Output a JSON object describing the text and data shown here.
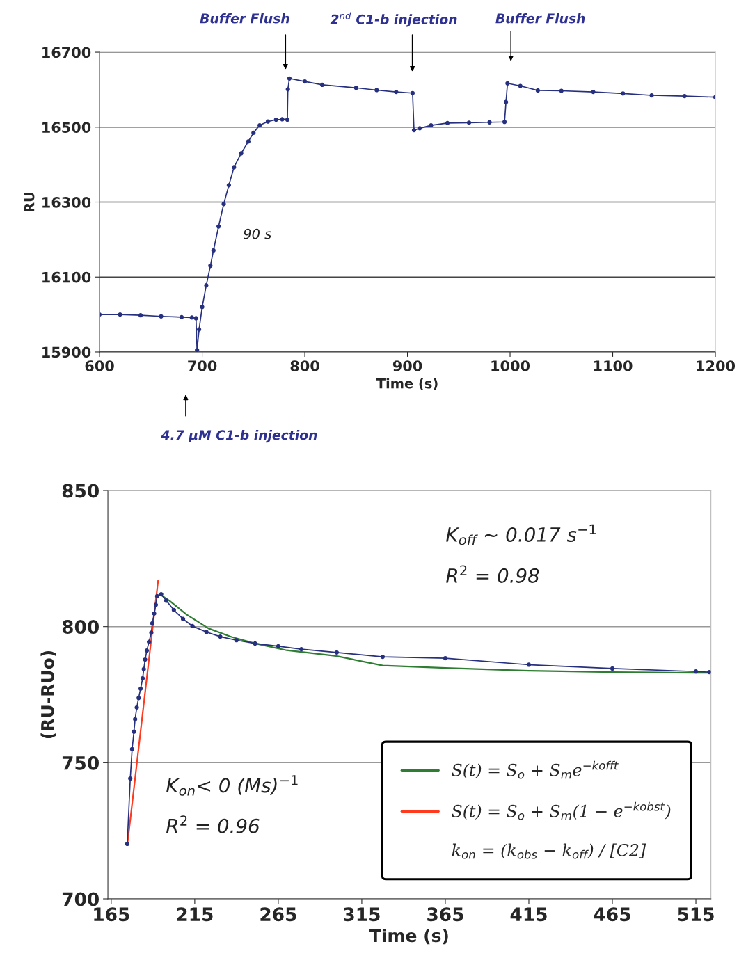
{
  "chart_data": [
    {
      "type": "line",
      "xlabel": "Time (s)",
      "ylabel": "RU",
      "xlim": [
        600,
        1200
      ],
      "xticks": [
        600,
        700,
        800,
        900,
        1000,
        1100,
        1200
      ],
      "ylim": [
        15900,
        16700
      ],
      "yticks": [
        15900,
        16100,
        16300,
        16500,
        16700
      ],
      "grid": "y",
      "marker": "circle",
      "series": [
        {
          "color": "#26307f",
          "x": [
            600,
            620,
            640,
            660,
            680,
            690,
            694,
            695,
            697,
            700,
            704,
            708,
            711,
            716,
            721,
            726,
            731,
            738,
            745,
            750,
            756,
            764,
            772,
            778,
            783,
            783.5,
            785,
            800,
            817,
            850,
            870,
            889,
            905,
            906.4,
            912,
            923,
            939,
            960,
            980,
            994.6,
            996,
            997.5,
            1010,
            1027,
            1050,
            1081,
            1110,
            1138,
            1170,
            1200
          ],
          "values": [
            16000,
            16000,
            15998,
            15995,
            15993,
            15992,
            15990,
            15905,
            15960,
            16020,
            16078,
            16130,
            16171,
            16235,
            16295,
            16345,
            16393,
            16430,
            16462,
            16485,
            16505,
            16515,
            16520,
            16521,
            16520,
            16601,
            16630,
            16622,
            16613,
            16605,
            16599,
            16594,
            16591,
            16492,
            16497,
            16505,
            16511,
            16512,
            16513,
            16514,
            16567,
            16617,
            16610,
            16598,
            16597,
            16594,
            16590,
            16585,
            16583,
            16580
          ]
        }
      ],
      "annotations": [
        "Buffer Flush",
        "2$^{nd}$ C1-b injection",
        "Buffer Flush",
        "90 s",
        "4.7 μM C1-b injection"
      ]
    },
    {
      "type": "line",
      "xlabel": "Time (s)",
      "ylabel": "(RU-RUo)",
      "xlim": [
        163,
        524
      ],
      "xticks": [
        165,
        215,
        265,
        315,
        365,
        415,
        465,
        515
      ],
      "ylim": [
        700,
        850
      ],
      "yticks": [
        700,
        750,
        800,
        850
      ],
      "grid": "y",
      "legend": "lower right",
      "series": [
        {
          "color": "#26307f",
          "marker": "circle",
          "x": [
            174.6,
            176.4,
            177.5,
            178.6,
            179.3,
            180.3,
            181.4,
            182.6,
            183.8,
            184.5,
            185.3,
            186.3,
            187.6,
            189,
            189.6,
            190.7,
            191.7,
            192.5,
            194.9,
            198,
            202.5,
            208,
            213.6,
            222,
            230.3,
            240,
            251.1,
            265,
            278.8,
            300,
            327.5,
            365,
            415,
            465,
            515,
            523
          ],
          "values": [
            720.2,
            744.2,
            755,
            761.4,
            766,
            770.3,
            773.8,
            777.2,
            781,
            784.4,
            787.9,
            791.2,
            794.4,
            797.8,
            801.2,
            804.8,
            808,
            811.2,
            811.9,
            809.5,
            806.1,
            802.8,
            800.2,
            798,
            796.3,
            795,
            793.8,
            792.8,
            791.7,
            790.5,
            788.9,
            788.4,
            786,
            784.6,
            783.5,
            783.3
          ]
        },
        {
          "name": "S(t) = S$_{o}$ + S$_{m}$e$^{−kofft}$",
          "color": "#2e7d32",
          "marker": "none",
          "x": [
            195,
            199.7,
            210,
            223.3,
            237,
            251.1,
            270,
            299.6,
            327.5,
            365,
            415,
            465,
            515,
            523
          ],
          "values": [
            811.5,
            809.6,
            804.5,
            799.3,
            796.2,
            793.8,
            791.3,
            789.2,
            785.7,
            784.8,
            783.8,
            783.3,
            783,
            783
          ]
        },
        {
          "name": "S(t) = S$_{o}$ + S$_{m}$(1 − e$^{−kobst}$)",
          "color": "#ff3b1f",
          "marker": "none",
          "x": [
            174.7,
            193.1
          ],
          "values": [
            720.1,
            817
          ]
        }
      ],
      "annotations": [
        "K$_{off}$ ~ 0.017 s$^{−1}$",
        "R$^{2}$ = 0.98",
        "K$_{on}$< 0 (Ms)$^{−1}$",
        "R$^{2}$ = 0.96",
        "k$_{on}$ = (k$_{obs}$ − k$_{off}$) / [C2]"
      ]
    }
  ]
}
